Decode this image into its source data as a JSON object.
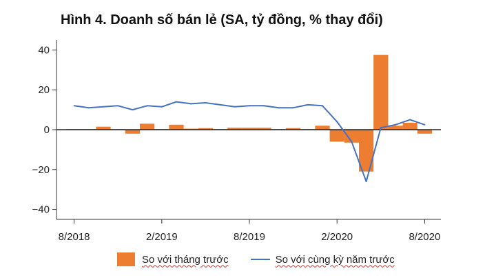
{
  "title": "Hình 4. Doanh số bán lẻ (SA, tỷ đồng, % thay đổi)",
  "chart_data": {
    "type": "bar",
    "x": [
      "2018-08",
      "2018-09",
      "2018-10",
      "2018-11",
      "2018-12",
      "2019-01",
      "2019-02",
      "2019-03",
      "2019-04",
      "2019-05",
      "2019-06",
      "2019-07",
      "2019-08",
      "2019-09",
      "2019-10",
      "2019-11",
      "2019-12",
      "2019-13",
      "2020-02",
      "2020-03",
      "2020-04",
      "2020-05",
      "2020-06",
      "2020-07",
      "2020-08"
    ],
    "x_tick_labels": [
      "8/2018",
      "2/2019",
      "8/2019",
      "2/2020",
      "8/2020"
    ],
    "ylim": [
      -45,
      45
    ],
    "y_ticks": [
      40,
      20,
      0,
      -20,
      -40
    ],
    "series": [
      {
        "name": "So với tháng trước",
        "type": "bar",
        "color": "#ed7d31",
        "values": [
          0.3,
          0.3,
          1.5,
          0.3,
          -2.0,
          3.0,
          0.3,
          2.5,
          0.5,
          0.8,
          0.3,
          1.0,
          1.0,
          1.0,
          0.3,
          0.8,
          0.3,
          2.0,
          -6.0,
          -6.5,
          -21.0,
          37.5,
          2.0,
          3.5,
          -2.0
        ]
      },
      {
        "name": "So với cùng kỳ năm trước",
        "type": "line",
        "color": "#4472c4",
        "values": [
          12.0,
          11.0,
          11.5,
          12.0,
          10.0,
          12.0,
          11.5,
          14.0,
          13.0,
          13.5,
          12.5,
          11.5,
          12.0,
          12.0,
          11.0,
          11.0,
          12.5,
          12.0,
          4.0,
          -6.0,
          -26.0,
          1.0,
          2.5,
          5.0,
          2.5
        ]
      }
    ]
  },
  "legend": {
    "bar_label": "So với tháng trước",
    "line_label": "So với cùng kỳ năm trước"
  }
}
